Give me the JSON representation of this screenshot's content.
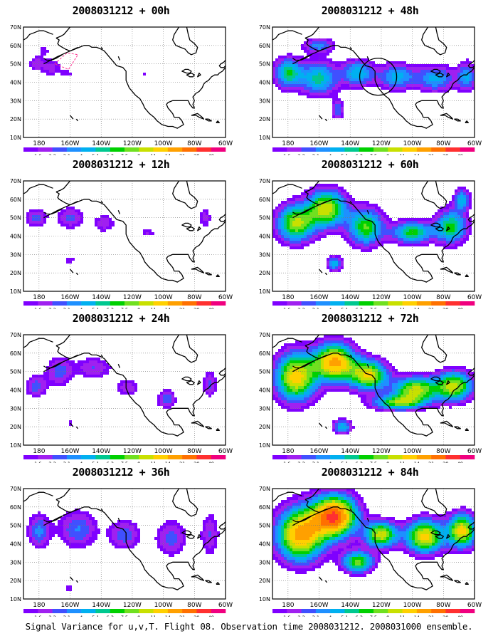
{
  "panels": [
    {
      "title": "2008031212 + 00h",
      "lead_hours": 0,
      "intensity": 0.6,
      "circle": false,
      "dashed_box": true
    },
    {
      "title": "2008031212 + 12h",
      "lead_hours": 12,
      "intensity": 0.9,
      "circle": false,
      "dashed_box": false
    },
    {
      "title": "2008031212 + 24h",
      "lead_hours": 24,
      "intensity": 1.1,
      "circle": false,
      "dashed_box": false
    },
    {
      "title": "2008031212 + 36h",
      "lead_hours": 36,
      "intensity": 1.4,
      "circle": false,
      "dashed_box": false
    },
    {
      "title": "2008031212 + 48h",
      "lead_hours": 48,
      "intensity": 2.6,
      "circle": true,
      "dashed_box": false
    },
    {
      "title": "2008031212 + 60h",
      "lead_hours": 60,
      "intensity": 3.6,
      "circle": false,
      "dashed_box": false
    },
    {
      "title": "2008031212 + 72h",
      "lead_hours": 72,
      "intensity": 4.5,
      "circle": false,
      "dashed_box": false
    },
    {
      "title": "2008031212 + 84h",
      "lead_hours": 84,
      "intensity": 5.3,
      "circle": false,
      "dashed_box": false
    }
  ],
  "lat_labels": [
    "70N",
    "60N",
    "50N",
    "40N",
    "30N",
    "20N",
    "10N"
  ],
  "lon_labels": [
    "180",
    "160W",
    "140W",
    "120W",
    "100W",
    "80W",
    "60W"
  ],
  "colorbar": {
    "labels": [
      "1.6",
      "2.2",
      "3.1",
      "4",
      "5.1",
      "6.3",
      "7.5",
      "9",
      "11",
      "14",
      "21",
      "29",
      "40"
    ],
    "colors": [
      "#7f00ff",
      "#a020f0",
      "#4050ff",
      "#1e90ff",
      "#00b0f0",
      "#00c890",
      "#00d000",
      "#70e020",
      "#c8e000",
      "#ffd000",
      "#ffa000",
      "#ff7000",
      "#ff3030",
      "#f0007f"
    ]
  },
  "footer": "Signal Variance for u,v,T. Flight 08. Observation time 2008031212. 2008031000 ensemble."
}
